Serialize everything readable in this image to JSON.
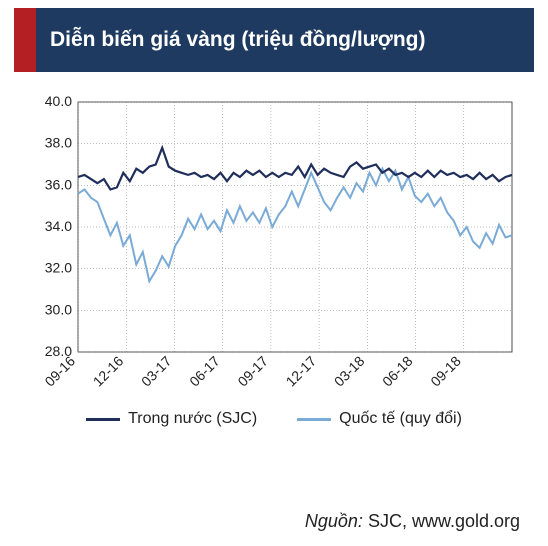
{
  "title": "Diễn biến giá vàng (triệu đồng/lượng)",
  "source_label": "Nguồn:",
  "source_value": "SJC, www.gold.org",
  "legend": [
    {
      "key": "domestic",
      "label": "Trong nước (SJC)",
      "color": "#1f2e5a"
    },
    {
      "key": "intl",
      "label": "Quốc tế (quy đổi)",
      "color": "#7aaad6"
    }
  ],
  "chart": {
    "type": "line",
    "background_color": "#ffffff",
    "grid_color": "#7f7f7f",
    "grid_width": 0.5,
    "axis_color": "#222222",
    "plot_border": true,
    "ylim": [
      28.0,
      40.0
    ],
    "ytick_step": 2.0,
    "yticks": [
      "28.0",
      "30.0",
      "32.0",
      "34.0",
      "36.0",
      "38.0",
      "40.0"
    ],
    "xlim": [
      0,
      27
    ],
    "xticks": [
      {
        "pos": 0,
        "label": "09-16"
      },
      {
        "pos": 3,
        "label": "12-16"
      },
      {
        "pos": 6,
        "label": "03-17"
      },
      {
        "pos": 9,
        "label": "06-17"
      },
      {
        "pos": 12,
        "label": "09-17"
      },
      {
        "pos": 15,
        "label": "12-17"
      },
      {
        "pos": 18,
        "label": "03-18"
      },
      {
        "pos": 21,
        "label": "06-18"
      },
      {
        "pos": 24,
        "label": "09-18"
      }
    ],
    "label_fontsize": 14,
    "line_width_domestic": 2.2,
    "line_width_intl": 2.0,
    "series": {
      "domestic": [
        36.4,
        36.5,
        36.3,
        36.1,
        36.3,
        35.8,
        35.9,
        36.6,
        36.2,
        36.8,
        36.6,
        36.9,
        37.0,
        37.8,
        36.9,
        36.7,
        36.6,
        36.5,
        36.6,
        36.4,
        36.5,
        36.3,
        36.6,
        36.2,
        36.6,
        36.4,
        36.7,
        36.5,
        36.7,
        36.4,
        36.6,
        36.4,
        36.6,
        36.5,
        36.9,
        36.4,
        37.0,
        36.5,
        36.8,
        36.6,
        36.5,
        36.4,
        36.9,
        37.1,
        36.8,
        36.9,
        37.0,
        36.6,
        36.8,
        36.5,
        36.6,
        36.4,
        36.6,
        36.4,
        36.7,
        36.4,
        36.7,
        36.5,
        36.6,
        36.4,
        36.5,
        36.3,
        36.6,
        36.3,
        36.5,
        36.2,
        36.4,
        36.5
      ],
      "intl": [
        35.6,
        35.8,
        35.4,
        35.2,
        34.4,
        33.6,
        34.2,
        33.1,
        33.6,
        32.2,
        32.8,
        31.4,
        31.9,
        32.6,
        32.1,
        33.1,
        33.6,
        34.4,
        33.9,
        34.6,
        33.9,
        34.3,
        33.8,
        34.8,
        34.2,
        35.0,
        34.3,
        34.7,
        34.2,
        34.9,
        34.0,
        34.6,
        35.0,
        35.7,
        35.0,
        35.8,
        36.6,
        35.9,
        35.2,
        34.8,
        35.4,
        35.9,
        35.4,
        36.1,
        35.7,
        36.6,
        36.0,
        36.8,
        36.2,
        36.7,
        35.8,
        36.4,
        35.5,
        35.2,
        35.6,
        35.0,
        35.4,
        34.7,
        34.3,
        33.6,
        34.0,
        33.3,
        33.0,
        33.7,
        33.2,
        34.1,
        33.5,
        33.6
      ]
    }
  },
  "colors": {
    "title_red": "#b41f24",
    "title_blue": "#1f3a60",
    "title_text": "#ffffff"
  }
}
